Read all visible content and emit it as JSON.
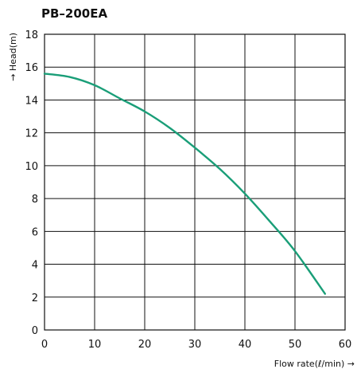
{
  "chart_data": {
    "type": "line",
    "title": "PB–200EA",
    "xlabel": "Flow rate(ℓ/min) →",
    "ylabel": "→ Head(m)",
    "xlim": [
      0,
      60
    ],
    "ylim": [
      0,
      18
    ],
    "x_ticks": [
      "0",
      "10",
      "20",
      "30",
      "40",
      "50",
      "60"
    ],
    "y_ticks": [
      "0",
      "2",
      "4",
      "6",
      "8",
      "10",
      "12",
      "14",
      "16",
      "18"
    ],
    "grid": true,
    "series": [
      {
        "color": "#1a9e78",
        "x": [
          0,
          5,
          10,
          15,
          20,
          25,
          30,
          35,
          40,
          45,
          50,
          56
        ],
        "y": [
          15.6,
          15.4,
          14.9,
          14.1,
          13.3,
          12.3,
          11.1,
          9.8,
          8.3,
          6.6,
          4.8,
          2.2
        ]
      }
    ]
  }
}
